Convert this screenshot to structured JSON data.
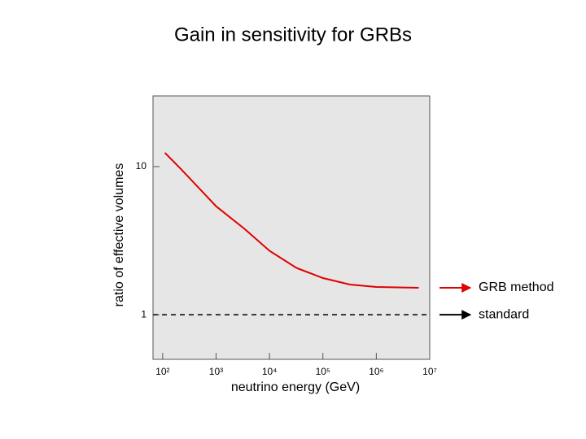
{
  "chart_data": {
    "type": "line",
    "title": "Gain in sensitivity for GRBs",
    "x_label": "neutrino energy (GeV)",
    "y_label": "ratio of effective volumes",
    "xscale": "log",
    "yscale": "log",
    "xlim": [
      66,
      10000000
    ],
    "ylim": [
      0.5,
      30
    ],
    "xticks": [
      {
        "value": 100,
        "label": "10²"
      },
      {
        "value": 1000,
        "label": "10³"
      },
      {
        "value": 10000,
        "label": "10⁴"
      },
      {
        "value": 100000,
        "label": "10⁵"
      },
      {
        "value": 1000000,
        "label": "10⁶"
      },
      {
        "value": 10000000,
        "label": "10⁷"
      }
    ],
    "yticks": [
      1,
      10
    ],
    "series": [
      {
        "name": "GRB method",
        "color": "#e00000",
        "dashed": false,
        "x": [
          110,
          215,
          1000,
          3400,
          10000,
          32000,
          100000,
          320000,
          1000000,
          6200000
        ],
        "values": [
          12.4,
          9.7,
          5.4,
          3.8,
          2.7,
          2.07,
          1.77,
          1.6,
          1.54,
          1.52
        ]
      },
      {
        "name": "standard",
        "color": "#000000",
        "dashed": true,
        "x": [
          66,
          10000000
        ],
        "values": [
          1,
          1
        ]
      }
    ]
  }
}
